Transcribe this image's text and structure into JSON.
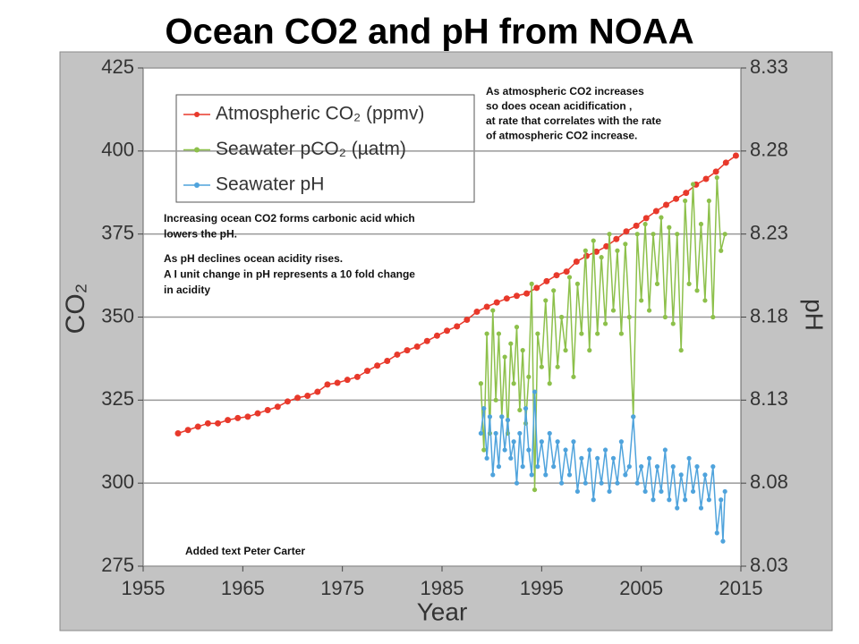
{
  "chart_data": {
    "type": "line",
    "title": "Ocean CO2 and pH from NOAA",
    "x_label": "Year",
    "y_label": "CO₂",
    "y2_label": "pH",
    "xlim": [
      1955,
      2015
    ],
    "xticks": [
      1955,
      1965,
      1975,
      1985,
      1995,
      2005,
      2015
    ],
    "ylim": [
      275,
      425
    ],
    "yticks": [
      275,
      300,
      325,
      350,
      375,
      400,
      425
    ],
    "y2lim": [
      8.03,
      8.33
    ],
    "y2ticks": [
      8.03,
      8.08,
      8.13,
      8.18,
      8.23,
      8.28,
      8.33
    ],
    "grid": true,
    "legend": "top-left",
    "annotations": [
      {
        "lines": [
          "As atmospheric CO2 increases",
          "so does ocean acidification ,",
          "at rate that correlates with the rate",
          "of atmospheric CO2 increase."
        ]
      },
      {
        "lines": [
          "Increasing ocean CO2 forms carbonic acid  which",
          "lowers the  pH.",
          "As pH declines ocean acidity rises.",
          "A I unit change in pH represents a 10 fold change",
          "in acidity"
        ]
      },
      {
        "lines": [
          "Added text    Peter Carter"
        ]
      }
    ],
    "series": [
      {
        "name": "Atmospheric CO₂ (ppmv)",
        "color": "#e8392b",
        "axis": "y",
        "x": [
          1958.5,
          1959.5,
          1960.5,
          1961.5,
          1962.5,
          1963.5,
          1964.5,
          1965.5,
          1966.5,
          1967.5,
          1968.5,
          1969.5,
          1970.5,
          1971.5,
          1972.5,
          1973.5,
          1974.5,
          1975.5,
          1976.5,
          1977.5,
          1978.5,
          1979.5,
          1980.5,
          1981.5,
          1982.5,
          1983.5,
          1984.5,
          1985.5,
          1986.5,
          1987.5,
          1988.5,
          1989.5,
          1990.5,
          1991.5,
          1992.5,
          1993.5,
          1994.5,
          1995.5,
          1996.5,
          1997.5,
          1998.5,
          1999.5,
          2000.5,
          2001.5,
          2002.5,
          2003.5,
          2004.5,
          2005.5,
          2006.5,
          2007.5,
          2008.5,
          2009.5,
          2010.5,
          2011.5,
          2012.5,
          2013.5,
          2014.5
        ],
        "values": [
          315,
          316,
          317,
          318,
          318,
          319,
          319.6,
          320,
          321,
          322,
          323,
          324.6,
          325.7,
          326.3,
          327.5,
          329.7,
          330.2,
          331.1,
          332,
          333.8,
          335.4,
          336.8,
          338.7,
          340,
          341.1,
          342.8,
          344.4,
          345.9,
          347.2,
          349.2,
          351.6,
          353.1,
          354.4,
          355.6,
          356.4,
          357.1,
          358.8,
          360.8,
          362.6,
          363.7,
          366.7,
          368.4,
          369.7,
          371.3,
          373.5,
          375.8,
          377.5,
          379.8,
          381.9,
          383.8,
          385.6,
          387.4,
          389.9,
          391.6,
          393.8,
          396.5,
          398.6
        ]
      },
      {
        "name": "Seawater pCO₂ (µatm)",
        "color": "#8dc04b",
        "axis": "y",
        "x": [
          1988.9,
          1989.2,
          1989.5,
          1989.8,
          1990.1,
          1990.4,
          1990.7,
          1991.0,
          1991.3,
          1991.6,
          1991.9,
          1992.2,
          1992.5,
          1992.8,
          1993.1,
          1993.4,
          1993.7,
          1994.0,
          1994.3,
          1994.6,
          1995.0,
          1995.4,
          1995.8,
          1996.2,
          1996.6,
          1997.0,
          1997.4,
          1997.8,
          1998.2,
          1998.6,
          1999.0,
          1999.4,
          1999.8,
          2000.2,
          2000.6,
          2001.0,
          2001.4,
          2001.8,
          2002.2,
          2002.6,
          2003.0,
          2003.4,
          2003.8,
          2004.2,
          2004.6,
          2005.0,
          2005.4,
          2005.8,
          2006.2,
          2006.6,
          2007.0,
          2007.4,
          2007.8,
          2008.2,
          2008.6,
          2009.0,
          2009.4,
          2009.8,
          2010.2,
          2010.6,
          2011.0,
          2011.4,
          2011.8,
          2012.2,
          2012.6,
          2013.0,
          2013.4
        ],
        "values": [
          330,
          310,
          345,
          315,
          352,
          325,
          345,
          320,
          338,
          315,
          342,
          330,
          347,
          322,
          340,
          318,
          332,
          360,
          298,
          345,
          335,
          355,
          330,
          358,
          335,
          350,
          340,
          362,
          332,
          360,
          345,
          370,
          340,
          373,
          345,
          368,
          348,
          375,
          352,
          370,
          345,
          372,
          350,
          320,
          375,
          355,
          378,
          352,
          375,
          360,
          380,
          350,
          377,
          348,
          375,
          340,
          385,
          360,
          390,
          358,
          378,
          355,
          385,
          350,
          392,
          370,
          375
        ]
      },
      {
        "name": "Seawater pH",
        "color": "#4fa3dc",
        "axis": "y2",
        "x": [
          1988.9,
          1989.2,
          1989.5,
          1989.8,
          1990.1,
          1990.4,
          1990.7,
          1991.0,
          1991.3,
          1991.6,
          1991.9,
          1992.2,
          1992.5,
          1992.8,
          1993.1,
          1993.4,
          1993.7,
          1994.0,
          1994.3,
          1994.6,
          1995.0,
          1995.4,
          1995.8,
          1996.2,
          1996.6,
          1997.0,
          1997.4,
          1997.8,
          1998.2,
          1998.6,
          1999.0,
          1999.4,
          1999.8,
          2000.2,
          2000.6,
          2001.0,
          2001.4,
          2001.8,
          2002.2,
          2002.6,
          2003.0,
          2003.4,
          2003.8,
          2004.2,
          2004.6,
          2005.0,
          2005.4,
          2005.8,
          2006.2,
          2006.6,
          2007.0,
          2007.4,
          2007.8,
          2008.2,
          2008.6,
          2009.0,
          2009.4,
          2009.8,
          2010.2,
          2010.6,
          2011.0,
          2011.4,
          2011.8,
          2012.2,
          2012.6,
          2013.0,
          2013.2,
          2013.4
        ],
        "values": [
          8.11,
          8.125,
          8.095,
          8.12,
          8.085,
          8.11,
          8.09,
          8.12,
          8.1,
          8.118,
          8.095,
          8.105,
          8.08,
          8.11,
          8.09,
          8.125,
          8.1,
          8.085,
          8.135,
          8.09,
          8.105,
          8.085,
          8.11,
          8.09,
          8.105,
          8.08,
          8.1,
          8.085,
          8.105,
          8.075,
          8.095,
          8.08,
          8.1,
          8.07,
          8.095,
          8.08,
          8.1,
          8.075,
          8.095,
          8.08,
          8.105,
          8.085,
          8.09,
          8.12,
          8.08,
          8.09,
          8.075,
          8.095,
          8.07,
          8.09,
          8.075,
          8.1,
          8.07,
          8.09,
          8.065,
          8.085,
          8.07,
          8.095,
          8.075,
          8.09,
          8.065,
          8.085,
          8.07,
          8.09,
          8.05,
          8.07,
          8.045,
          8.075
        ]
      }
    ]
  }
}
